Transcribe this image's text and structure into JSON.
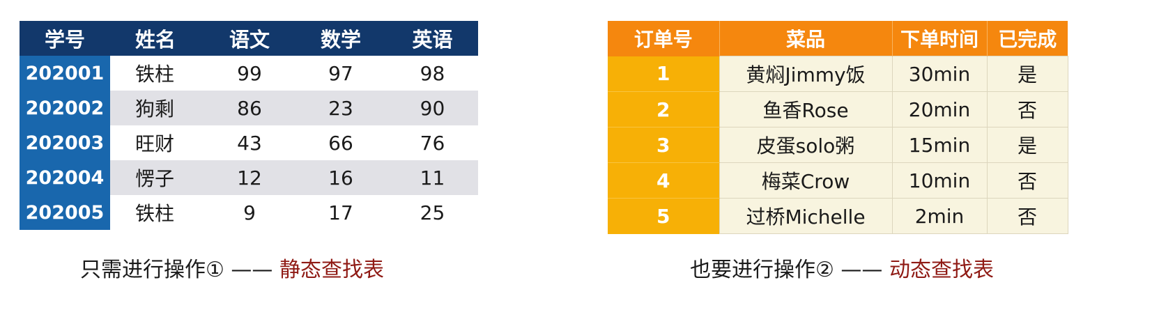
{
  "static_table": {
    "headers": [
      "学号",
      "姓名",
      "语文",
      "数学",
      "英语"
    ],
    "rows": [
      [
        "202001",
        "铁柱",
        "99",
        "97",
        "98"
      ],
      [
        "202002",
        "狗剩",
        "86",
        "23",
        "90"
      ],
      [
        "202003",
        "旺财",
        "43",
        "66",
        "76"
      ],
      [
        "202004",
        "愣子",
        "12",
        "16",
        "11"
      ],
      [
        "202005",
        "铁柱",
        "9",
        "17",
        "25"
      ]
    ]
  },
  "dynamic_table": {
    "headers": [
      "订单号",
      "菜品",
      "下单时间",
      "已完成"
    ],
    "rows": [
      [
        "1",
        "黄焖Jimmy饭",
        "30min",
        "是"
      ],
      [
        "2",
        "鱼香Rose",
        "20min",
        "否"
      ],
      [
        "3",
        "皮蛋solo粥",
        "15min",
        "是"
      ],
      [
        "4",
        "梅菜Crow",
        "10min",
        "否"
      ],
      [
        "5",
        "过桥Michelle",
        "2min",
        "否"
      ]
    ]
  },
  "captions": {
    "left_prefix": "只需进行操作① —— ",
    "left_emphasis": "静态查找表",
    "right_prefix": "也要进行操作② —— ",
    "right_emphasis": "动态查找表"
  },
  "colors": {
    "static_header": "#12386b",
    "static_id_column": "#1967ad",
    "static_alt_row": "#e1e1e6",
    "dynamic_header": "#f5870e",
    "dynamic_order_column": "#f7b006",
    "dynamic_body": "#f8f4df",
    "caption_emphasis": "#8f1a14"
  }
}
